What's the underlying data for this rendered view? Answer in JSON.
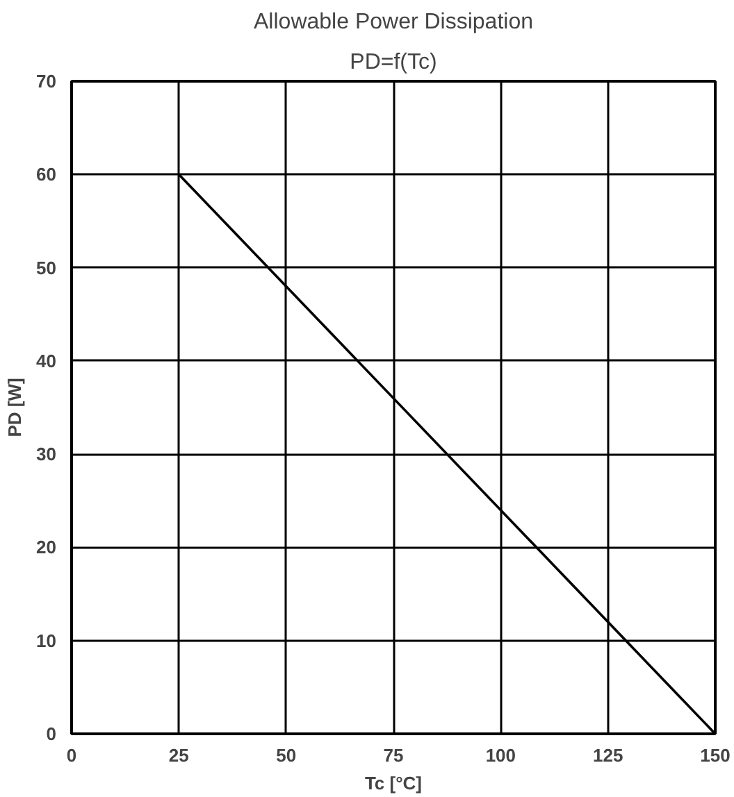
{
  "chart_data": {
    "type": "line",
    "title": "Allowable Power Dissipation",
    "subtitle": "PD=f(Tc)",
    "xlabel": "Tc [°C]",
    "ylabel": "PD [W]",
    "x": [
      25,
      150
    ],
    "series": [
      {
        "color": "#000000",
        "values": [
          60,
          0
        ]
      }
    ],
    "xlim": [
      0,
      150
    ],
    "ylim": [
      0,
      70
    ],
    "xticks": [
      0,
      25,
      50,
      75,
      100,
      125,
      150
    ],
    "yticks": [
      0,
      10,
      20,
      30,
      40,
      50,
      60,
      70
    ],
    "grid": true,
    "marker": "none",
    "line_style": "solid"
  }
}
